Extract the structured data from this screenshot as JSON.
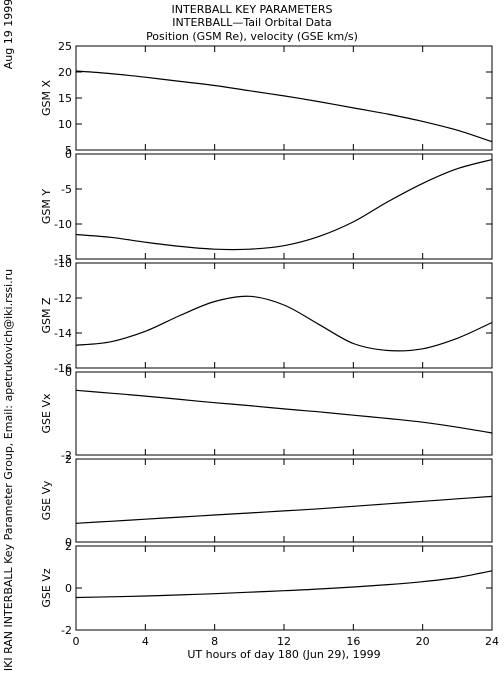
{
  "side_labels": {
    "date": "Aug 19 1999",
    "credit": "IKI RAN INTERBALL Key Parameter Group, Email: apetrukovich@iki.rssi.ru"
  },
  "chart_data": {
    "type": "line",
    "title": [
      "INTERBALL KEY PARAMETERS",
      "INTERBALL—Tail Orbital Data",
      "Position (GSM Re), velocity (GSE km/s)"
    ],
    "xlabel": "UT hours of day 180 (Jun 29), 1999",
    "xlim": [
      0,
      24
    ],
    "xticks": [
      0,
      4,
      8,
      12,
      16,
      20,
      24
    ],
    "grid": false,
    "line_color": "#000000",
    "panels": [
      {
        "ylabel": "GSM X",
        "ylim": [
          5,
          25
        ],
        "yticks": [
          5,
          10,
          15,
          20,
          25
        ],
        "x": [
          0,
          2,
          4,
          6,
          8,
          10,
          12,
          14,
          16,
          18,
          20,
          22,
          24
        ],
        "y": [
          20.2,
          19.7,
          19.0,
          18.2,
          17.4,
          16.4,
          15.4,
          14.3,
          13.1,
          11.9,
          10.5,
          8.8,
          6.6
        ]
      },
      {
        "ylabel": "GSM Y",
        "ylim": [
          -15,
          0
        ],
        "yticks": [
          -15,
          -10,
          -5,
          0
        ],
        "x": [
          0,
          2,
          4,
          6,
          8,
          10,
          12,
          14,
          16,
          18,
          20,
          22,
          24
        ],
        "y": [
          -11.5,
          -11.9,
          -12.6,
          -13.2,
          -13.6,
          -13.6,
          -13.1,
          -11.8,
          -9.7,
          -6.8,
          -4.2,
          -2.1,
          -0.8
        ]
      },
      {
        "ylabel": "GSM Z",
        "ylim": [
          -16,
          -10
        ],
        "yticks": [
          -16,
          -14,
          -12,
          -10
        ],
        "x": [
          0,
          2,
          4,
          6,
          8,
          10,
          12,
          14,
          16,
          18,
          20,
          22,
          24
        ],
        "y": [
          -14.7,
          -14.5,
          -13.9,
          -13.0,
          -12.2,
          -11.9,
          -12.4,
          -13.5,
          -14.6,
          -15.0,
          -14.9,
          -14.3,
          -13.4
        ]
      },
      {
        "ylabel": "GSE Vx",
        "ylim": [
          -2,
          0
        ],
        "yticks": [
          -2,
          0
        ],
        "x": [
          0,
          2,
          4,
          6,
          8,
          10,
          12,
          14,
          16,
          18,
          20,
          22,
          24
        ],
        "y": [
          -0.44,
          -0.51,
          -0.58,
          -0.66,
          -0.74,
          -0.81,
          -0.89,
          -0.96,
          -1.04,
          -1.12,
          -1.21,
          -1.33,
          -1.47
        ]
      },
      {
        "ylabel": "GSE Vy",
        "ylim": [
          0,
          2
        ],
        "yticks": [
          0,
          2
        ],
        "x": [
          0,
          2,
          4,
          6,
          8,
          10,
          12,
          14,
          16,
          18,
          20,
          22,
          24
        ],
        "y": [
          0.45,
          0.5,
          0.55,
          0.6,
          0.65,
          0.7,
          0.75,
          0.8,
          0.86,
          0.92,
          0.98,
          1.04,
          1.1
        ]
      },
      {
        "ylabel": "GSE Vz",
        "ylim": [
          -2,
          2
        ],
        "yticks": [
          -2,
          0,
          2
        ],
        "x": [
          0,
          2,
          4,
          6,
          8,
          10,
          12,
          14,
          16,
          18,
          20,
          22,
          24
        ],
        "y": [
          -0.45,
          -0.42,
          -0.38,
          -0.33,
          -0.27,
          -0.2,
          -0.13,
          -0.05,
          0.05,
          0.16,
          0.3,
          0.5,
          0.82
        ]
      }
    ]
  }
}
